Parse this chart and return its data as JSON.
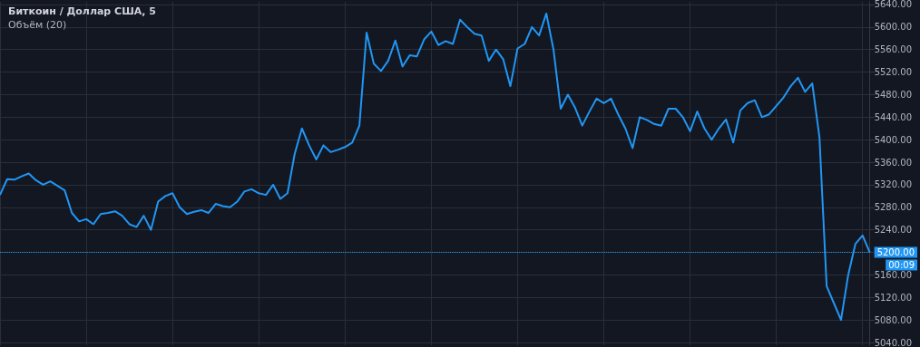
{
  "chart_data": {
    "type": "line",
    "title": "Биткоин / Доллар США, 5",
    "subtitle": "Объём (20)",
    "categories": [
      null,
      null,
      null,
      null,
      null,
      null,
      null,
      null,
      null,
      null,
      null,
      null,
      null,
      null,
      null,
      null,
      null,
      null,
      null,
      null,
      null,
      null,
      null,
      null,
      null,
      null,
      null,
      null,
      null,
      null,
      null,
      null,
      null,
      null,
      null,
      null,
      null,
      null,
      null,
      null,
      null,
      null,
      null,
      null,
      null,
      null,
      null,
      null,
      null,
      null,
      null,
      null,
      null,
      null,
      null,
      null,
      null,
      null,
      null,
      null,
      null,
      null,
      null,
      null,
      null,
      null,
      null,
      null,
      null,
      null,
      null,
      null,
      null,
      null,
      null,
      null,
      null,
      null,
      null,
      null,
      null,
      null,
      null,
      null,
      null,
      null,
      null,
      null,
      null,
      null,
      null,
      null,
      null,
      null,
      null,
      null,
      null,
      null,
      null,
      null,
      null,
      null,
      null,
      null,
      null,
      null,
      null,
      null,
      null,
      null,
      null,
      null,
      null,
      null,
      null,
      null,
      null,
      null,
      null,
      null,
      null,
      null
    ],
    "series": [
      {
        "color": "#2196f3",
        "values": [
          5302,
          5330,
          5329,
          5335,
          5340,
          5328,
          5320,
          5326,
          5318,
          5310,
          5270,
          5255,
          5259,
          5250,
          5268,
          5270,
          5273,
          5265,
          5250,
          5245,
          5265,
          5240,
          5290,
          5300,
          5305,
          5280,
          5268,
          5272,
          5275,
          5270,
          5286,
          5282,
          5280,
          5290,
          5308,
          5312,
          5305,
          5302,
          5320,
          5295,
          5305,
          5375,
          5420,
          5390,
          5365,
          5390,
          5378,
          5382,
          5387,
          5395,
          5425,
          5590,
          5535,
          5522,
          5540,
          5576,
          5530,
          5550,
          5548,
          5578,
          5592,
          5568,
          5575,
          5570,
          5613,
          5600,
          5588,
          5585,
          5540,
          5560,
          5543,
          5495,
          5562,
          5570,
          5600,
          5585,
          5624,
          5560,
          5455,
          5480,
          5457,
          5425,
          5450,
          5473,
          5465,
          5473,
          5445,
          5420,
          5385,
          5440,
          5435,
          5428,
          5425,
          5455,
          5455,
          5440,
          5415,
          5450,
          5420,
          5400,
          5420,
          5436,
          5395,
          5452,
          5465,
          5470,
          5440,
          5445,
          5460,
          5475,
          5495,
          5510,
          5485,
          5500,
          5404,
          5140,
          5110,
          5080,
          5160,
          5215,
          5230,
          5200
        ]
      }
    ],
    "ylim": [
      5035,
      5645
    ],
    "yticks": [
      {
        "value": 5040,
        "label": "5040.00"
      },
      {
        "value": 5080,
        "label": "5080.00"
      },
      {
        "value": 5120,
        "label": "5120.00"
      },
      {
        "value": 5160,
        "label": "5160.00"
      },
      {
        "value": 5200,
        "label": "5200.00"
      },
      {
        "value": 5240,
        "label": "5240.00"
      },
      {
        "value": 5280,
        "label": "5280.00"
      },
      {
        "value": 5320,
        "label": "5320.00"
      },
      {
        "value": 5360,
        "label": "5360.00"
      },
      {
        "value": 5400,
        "label": "5400.00"
      },
      {
        "value": 5440,
        "label": "5440.00"
      },
      {
        "value": 5480,
        "label": "5480.00"
      },
      {
        "value": 5520,
        "label": "5520.00"
      },
      {
        "value": 5560,
        "label": "5560.00"
      },
      {
        "value": 5600,
        "label": "5600.00"
      },
      {
        "value": 5640,
        "label": "5640.00"
      }
    ],
    "ref_lines": [
      {
        "axis": "y",
        "value": 5200,
        "color": "#2196f3",
        "line_style": "dotted"
      }
    ],
    "annotations": [
      "00:09"
    ],
    "grid": true,
    "line_style": "solid",
    "tick_labels": "y"
  }
}
